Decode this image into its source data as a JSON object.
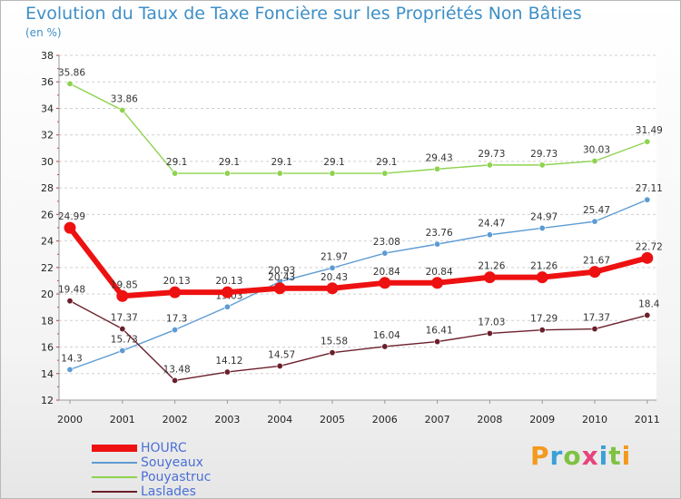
{
  "chart_data": {
    "type": "line",
    "title": "Evolution du Taux de Taxe Foncière sur les Propriétés Non Bâties",
    "subtitle": "(en %)",
    "x": [
      "2000",
      "2001",
      "2002",
      "2003",
      "2004",
      "2005",
      "2006",
      "2007",
      "2008",
      "2009",
      "2010",
      "2011"
    ],
    "yticks": [
      "12",
      "14",
      "16",
      "18",
      "20",
      "22",
      "24",
      "26",
      "28",
      "30",
      "32",
      "34",
      "36",
      "38"
    ],
    "ylim": [
      12,
      38
    ],
    "grid": "dashed-horizontal",
    "legend": "bottom-left",
    "series": [
      {
        "name": "Pouyastruc",
        "color": "#8ed34f",
        "values": [
          35.86,
          33.86,
          29.1,
          29.1,
          29.1,
          29.1,
          29.1,
          29.43,
          29.73,
          29.73,
          30.03,
          31.49
        ],
        "labels": [
          "35.86",
          "33.86",
          "29.1",
          "29.1",
          "29.1",
          "29.1",
          "29.1",
          "29.43",
          "29.73",
          "29.73",
          "30.03",
          "31.49"
        ]
      },
      {
        "name": "Souyeaux",
        "color": "#5d9bd3",
        "values": [
          14.3,
          15.73,
          17.3,
          19.03,
          20.93,
          21.97,
          23.08,
          23.76,
          24.47,
          24.97,
          25.47,
          27.11
        ],
        "labels": [
          "14.3",
          "15.73",
          "17.3",
          "19.03",
          "20.93",
          "21.97",
          "23.08",
          "23.76",
          "24.47",
          "24.97",
          "25.47",
          "27.11"
        ]
      },
      {
        "name": "Laslades",
        "color": "#6b1f2a",
        "values": [
          19.48,
          17.37,
          13.48,
          14.12,
          14.57,
          15.58,
          16.04,
          16.41,
          17.03,
          17.29,
          17.37,
          18.4
        ],
        "labels": [
          "19.48",
          "17.37",
          "13.48",
          "14.12",
          "14.57",
          "15.58",
          "16.04",
          "16.41",
          "17.03",
          "17.29",
          "17.37",
          "18.4"
        ]
      },
      {
        "name": "HOURC",
        "color": "#ee1111",
        "values": [
          24.99,
          19.85,
          20.13,
          20.13,
          20.43,
          20.43,
          20.84,
          20.84,
          21.26,
          21.26,
          21.67,
          22.72
        ],
        "labels": [
          "24.99",
          "19.85",
          "20.13",
          "20.13",
          "20.43",
          "20.43",
          "20.84",
          "20.84",
          "21.26",
          "21.26",
          "21.67",
          "22.72"
        ]
      }
    ]
  },
  "legend_items": [
    {
      "name": "HOURC",
      "color": "#ee1111"
    },
    {
      "name": "Souyeaux",
      "color": "#5d9bd3"
    },
    {
      "name": "Pouyastruc",
      "color": "#8ed34f"
    },
    {
      "name": "Laslades",
      "color": "#6b1f2a"
    }
  ],
  "brand": {
    "text": "Proxiti",
    "colors": [
      "#f39a1e",
      "#3aa0d8",
      "#7ec242",
      "#e8447a",
      "#3aa0d8",
      "#7ec242",
      "#f39a1e"
    ]
  }
}
